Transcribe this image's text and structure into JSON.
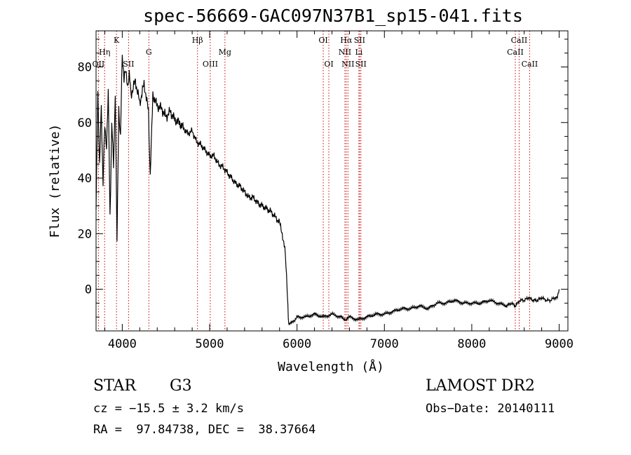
{
  "chart_data": {
    "type": "line",
    "title": "spec-56669-GAC097N37B1_sp15-041.fits",
    "xlabel": "Wavelength (Å)",
    "ylabel": "Flux (relative)",
    "xlim": [
      3700,
      9100
    ],
    "ylim": [
      -15,
      93
    ],
    "xticks": [
      4000,
      5000,
      6000,
      7000,
      8000,
      9000
    ],
    "yticks": [
      0,
      20,
      40,
      60,
      80
    ],
    "line_color": "#000000",
    "marker_color": "#cc0000",
    "series": [
      {
        "x": [
          3700,
          3720,
          3740,
          3760,
          3780,
          3800,
          3820,
          3840,
          3860,
          3880,
          3900,
          3920,
          3940,
          3960,
          3980,
          4000,
          4020,
          4040,
          4060,
          4080,
          4100,
          4150,
          4200,
          4250,
          4300,
          4320,
          4350,
          4400,
          4450,
          4500,
          4550,
          4600,
          4650,
          4700,
          4750,
          4800,
          4850,
          4900,
          4950,
          5000,
          5050,
          5100,
          5150,
          5200,
          5250,
          5300,
          5350,
          5400,
          5450,
          5500,
          5550,
          5600,
          5650,
          5700,
          5750,
          5800,
          5830,
          5860,
          5880,
          5890,
          5900,
          5910,
          5920,
          5950,
          6000,
          6100,
          6200,
          6300,
          6400,
          6500,
          6560,
          6600,
          6700,
          6800,
          6900,
          7000,
          7100,
          7200,
          7300,
          7400,
          7500,
          7600,
          7700,
          7800,
          7900,
          8000,
          8100,
          8200,
          8300,
          8400,
          8450,
          8500,
          8550,
          8600,
          8650,
          8700,
          8750,
          8800,
          8850,
          8900,
          8950,
          8980,
          9000
        ],
        "y": [
          30,
          70,
          45,
          65,
          38,
          60,
          50,
          72,
          25,
          60,
          45,
          70,
          18,
          64,
          55,
          85,
          75,
          80,
          72,
          78,
          70,
          75,
          67,
          74,
          64,
          40,
          70,
          66,
          65,
          62,
          64,
          61,
          60,
          58,
          56,
          57,
          53,
          52,
          50,
          48,
          48,
          45,
          44,
          42,
          40,
          38,
          37,
          35,
          33,
          33,
          31,
          30,
          29,
          28,
          26,
          24,
          20,
          15,
          5,
          -2,
          -11,
          -13,
          -12,
          -12,
          -10,
          -10,
          -9,
          -10,
          -9,
          -10,
          -11,
          -10,
          -11,
          -10,
          -9,
          -9,
          -8,
          -7,
          -7,
          -6,
          -7,
          -5,
          -5,
          -4,
          -5,
          -5,
          -5,
          -4,
          -5,
          -6,
          -5,
          -6,
          -4,
          -4,
          -3,
          -4,
          -4,
          -3,
          -4,
          -4,
          -3,
          -3,
          0
        ]
      }
    ],
    "line_markers": [
      {
        "x": 3727,
        "label": "OII",
        "row": 3
      },
      {
        "x": 3798,
        "label": "Hη",
        "row": 2
      },
      {
        "x": 3934,
        "label": "K",
        "row": 1
      },
      {
        "x": 4072,
        "label": "SII",
        "row": 3
      },
      {
        "x": 4304,
        "label": "G",
        "row": 2
      },
      {
        "x": 4861,
        "label": "Hβ",
        "row": 1
      },
      {
        "x": 5007,
        "label": "OIII",
        "row": 3
      },
      {
        "x": 5175,
        "label": "Mg",
        "row": 2
      },
      {
        "x": 6300,
        "label": "OI",
        "row": 1
      },
      {
        "x": 6364,
        "label": "OI",
        "row": 3
      },
      {
        "x": 6548,
        "label": "NII",
        "row": 2
      },
      {
        "x": 6563,
        "label": "Hα",
        "row": 1
      },
      {
        "x": 6583,
        "label": "NII",
        "row": 3
      },
      {
        "x": 6708,
        "label": "Li",
        "row": 2
      },
      {
        "x": 6716,
        "label": "SII",
        "row": 1
      },
      {
        "x": 6731,
        "label": "SII",
        "row": 3
      },
      {
        "x": 8498,
        "label": "CaII",
        "row": 2
      },
      {
        "x": 8542,
        "label": "CaII",
        "row": 1
      },
      {
        "x": 8662,
        "label": "CaII",
        "row": 3
      }
    ]
  },
  "info": {
    "obj_type": "STAR",
    "spec_class": "G3",
    "survey": "LAMOST DR2",
    "cz": "cz = −15.5 ± 3.2 km/s",
    "obs_date": "Obs−Date: 20140111",
    "radec": "RA =  97.84738, DEC =  38.37664"
  }
}
